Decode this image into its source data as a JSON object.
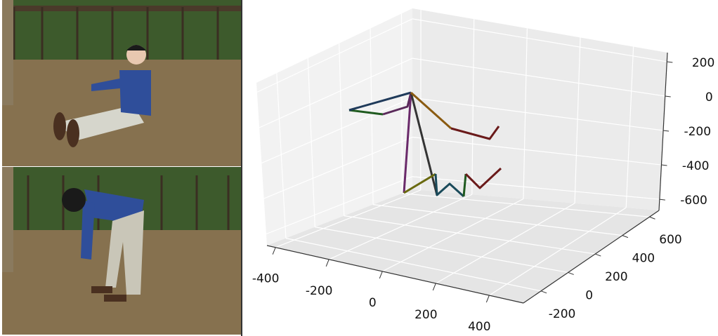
{
  "plot": {
    "xlim": [
      -432,
      528
    ],
    "ylim": [
      -330,
      670
    ],
    "zlim": [
      -665,
      253
    ],
    "xticks": [
      -400,
      -200,
      0,
      200,
      400
    ],
    "yticks": [
      -200,
      0,
      200,
      400,
      600
    ],
    "zticks": [
      200,
      0,
      -200,
      -400,
      -600
    ]
  }
}
